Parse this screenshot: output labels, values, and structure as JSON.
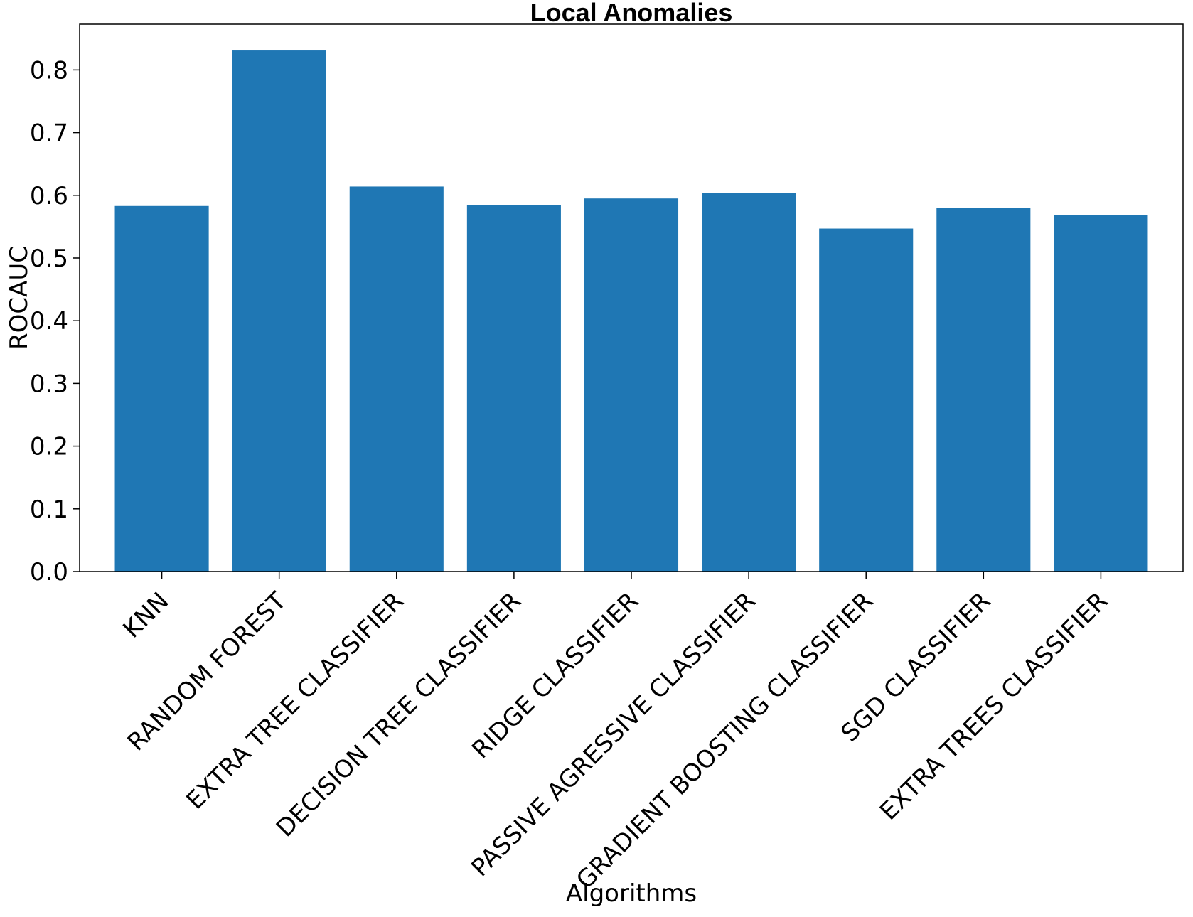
{
  "chart_data": {
    "type": "bar",
    "title": "Local Anomalies",
    "xlabel": "Algorithms",
    "ylabel": "ROCAUC",
    "categories": [
      "KNN",
      "RANDOM FOREST",
      "EXTRA TREE CLASSIFIER",
      "DECISION TREE CLASSIFIER",
      "RIDGE CLASSIFIER",
      "PASSIVE AGRESSIVE CLASSIFIER",
      "GRADIENT BOOSTING CLASSIFIER",
      "SGD CLASSIFIER",
      "EXTRA TREES CLASSIFIER"
    ],
    "values": [
      0.583,
      0.831,
      0.614,
      0.584,
      0.595,
      0.604,
      0.547,
      0.58,
      0.569
    ],
    "ylim": [
      0,
      0.873
    ],
    "yticks": [
      0.0,
      0.1,
      0.2,
      0.3,
      0.4,
      0.5,
      0.6,
      0.7,
      0.8
    ],
    "ytick_labels": [
      "0.0",
      "0.1",
      "0.2",
      "0.3",
      "0.4",
      "0.5",
      "0.6",
      "0.7",
      "0.8"
    ],
    "bar_color": "#1f77b4",
    "grid": false,
    "legend": "none"
  }
}
